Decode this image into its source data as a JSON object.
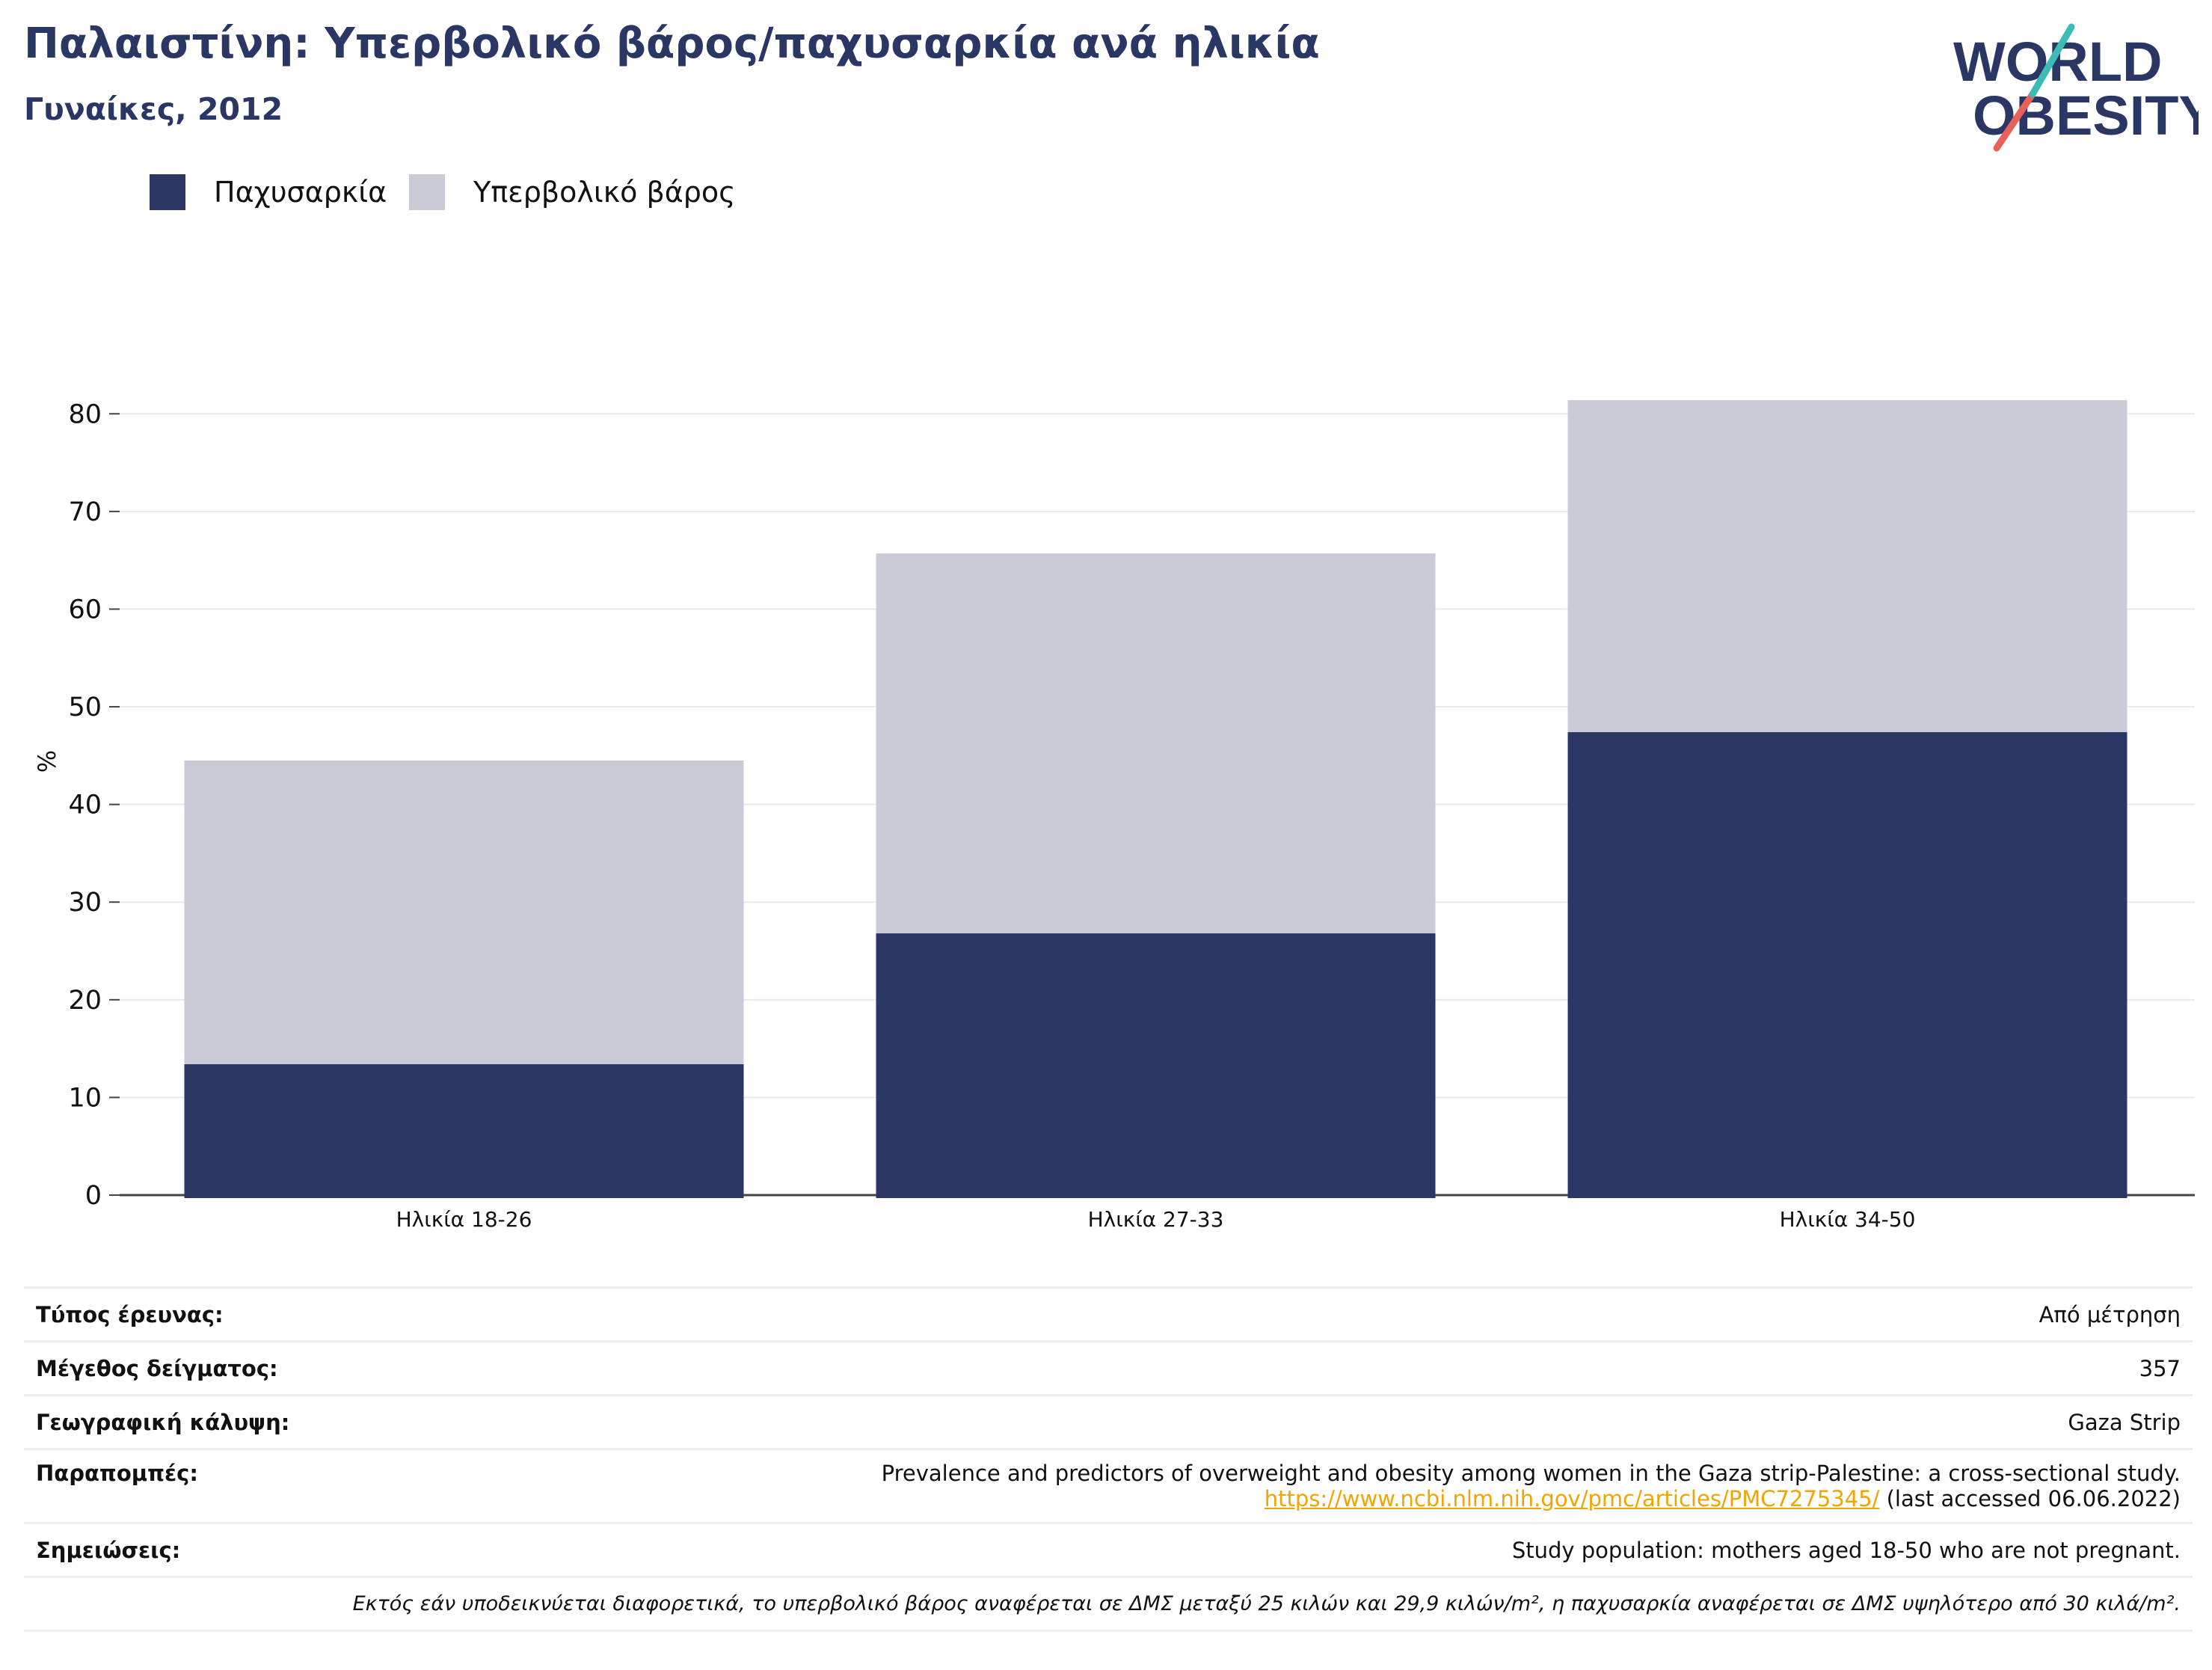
{
  "header": {
    "title": "Παλαιστίνη: Υπερβολικό βάρος/παχυσαρκία ανά ηλικία",
    "subtitle": "Γυναίκες, 2012"
  },
  "logo": {
    "line1": "WORLD",
    "line2": "OBESITY"
  },
  "colors": {
    "obesity": "#2b3764",
    "overweight": "#cacbd7",
    "brand": "#2a3663",
    "accent_teal": "#3cbcb4",
    "accent_red": "#e8605a",
    "link": "#f0a500"
  },
  "chart_data": {
    "type": "bar",
    "stacked": true,
    "categories": [
      "Ηλικία 18-26",
      "Ηλικία 27-33",
      "Ηλικία 34-50"
    ],
    "series": [
      {
        "name": "Παχυσαρκία",
        "values": [
          13.4,
          26.8,
          47.4
        ]
      },
      {
        "name": "Υπερβολικό βάρος",
        "values": [
          31.1,
          38.9,
          34.0
        ]
      }
    ],
    "ylabel": "%",
    "ylim": [
      0,
      85
    ],
    "yticks": [
      0,
      10,
      20,
      30,
      40,
      50,
      60,
      70,
      80
    ],
    "grid": true,
    "legend": "top-left"
  },
  "info": {
    "survey_type": {
      "label": "Τύπος έρευνας:",
      "value": "Από μέτρηση"
    },
    "sample_size": {
      "label": "Μέγεθος δείγματος:",
      "value": "357"
    },
    "coverage": {
      "label": "Γεωγραφική κάλυψη:",
      "value": "Gaza Strip"
    },
    "references": {
      "label": "Παραπομπές:",
      "text": "Prevalence and predictors of overweight and obesity among women in the Gaza strip-Palestine: a cross-sectional study.",
      "link": "https://www.ncbi.nlm.nih.gov/pmc/articles/PMC7275345/",
      "accessed": "(last accessed 06.06.2022)"
    },
    "notes": {
      "label": "Σημειώσεις:",
      "value": "Study population: mothers aged 18-50 who are not pregnant."
    },
    "footnote": "Εκτός εάν υποδεικνύεται διαφορετικά, το υπερβολικό βάρος αναφέρεται σε ΔΜΣ μεταξύ 25 κιλών και 29,9 κιλών/m², η παχυσαρκία αναφέρεται σε ΔΜΣ υψηλότερο από 30 κιλά/m²."
  }
}
